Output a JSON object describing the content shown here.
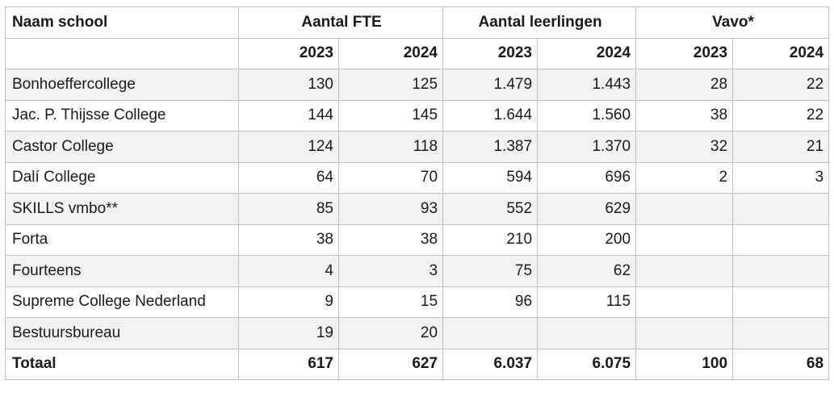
{
  "headers": {
    "school": "Naam school",
    "fte": "Aantal FTE",
    "students": "Aantal leerlingen",
    "vavo": "Vavo*"
  },
  "years": [
    "2023",
    "2024",
    "2023",
    "2024",
    "2023",
    "2024"
  ],
  "rows": [
    {
      "name": "Bonhoeffercollege",
      "fte_2023": "130",
      "fte_2024": "125",
      "students_2023": "1.479",
      "students_2024": "1.443",
      "vavo_2023": "28",
      "vavo_2024": "22"
    },
    {
      "name": "Jac. P. Thijsse College",
      "fte_2023": "144",
      "fte_2024": "145",
      "students_2023": "1.644",
      "students_2024": "1.560",
      "vavo_2023": "38",
      "vavo_2024": "22"
    },
    {
      "name": "Castor College",
      "fte_2023": "124",
      "fte_2024": "118",
      "students_2023": "1.387",
      "students_2024": "1.370",
      "vavo_2023": "32",
      "vavo_2024": "21"
    },
    {
      "name": "Dalí College",
      "fte_2023": "64",
      "fte_2024": "70",
      "students_2023": "594",
      "students_2024": "696",
      "vavo_2023": "2",
      "vavo_2024": "3"
    },
    {
      "name": "SKILLS vmbo**",
      "fte_2023": "85",
      "fte_2024": "93",
      "students_2023": "552",
      "students_2024": "629",
      "vavo_2023": "",
      "vavo_2024": ""
    },
    {
      "name": "Forta",
      "fte_2023": "38",
      "fte_2024": "38",
      "students_2023": "210",
      "students_2024": "200",
      "vavo_2023": "",
      "vavo_2024": ""
    },
    {
      "name": "Fourteens",
      "fte_2023": "4",
      "fte_2024": "3",
      "students_2023": "75",
      "students_2024": "62",
      "vavo_2023": "",
      "vavo_2024": ""
    },
    {
      "name": "Supreme College Nederland",
      "fte_2023": "9",
      "fte_2024": "15",
      "students_2023": "96",
      "students_2024": "115",
      "vavo_2023": "",
      "vavo_2024": ""
    },
    {
      "name": "Bestuursbureau",
      "fte_2023": "19",
      "fte_2024": "20",
      "students_2023": "",
      "students_2024": "",
      "vavo_2023": "",
      "vavo_2024": ""
    }
  ],
  "total": {
    "name": "Totaal",
    "fte_2023": "617",
    "fte_2024": "627",
    "students_2023": "6.037",
    "students_2024": "6.075",
    "vavo_2023": "100",
    "vavo_2024": "68"
  },
  "colors": {
    "border": "#bfbfbf",
    "shade": "#f2f2f2",
    "text": "#1a1a1a"
  }
}
